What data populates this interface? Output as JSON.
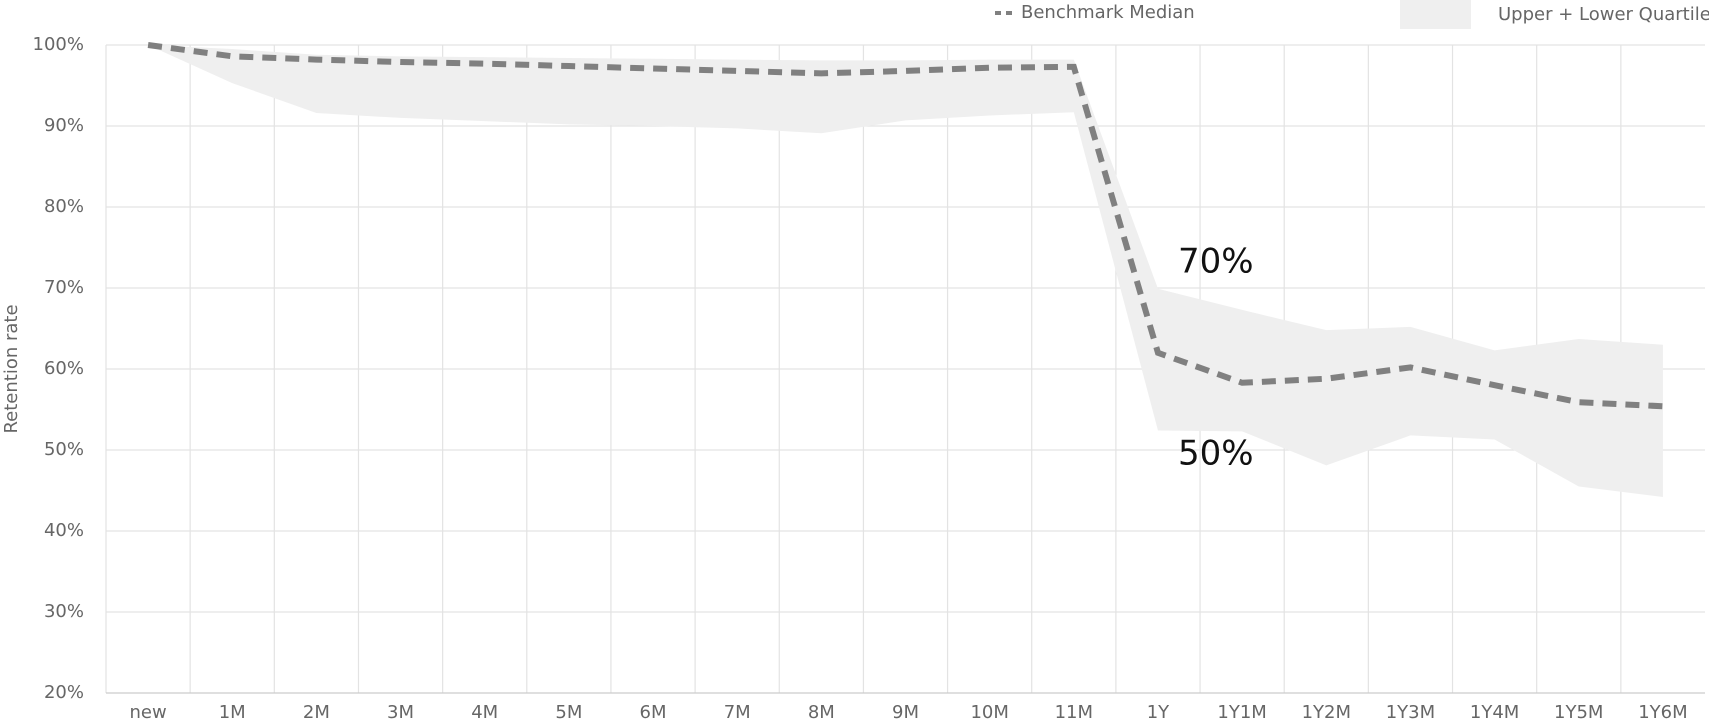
{
  "chart_data": {
    "type": "line",
    "y_label": "Retention rate",
    "categories": [
      "new",
      "1M",
      "2M",
      "3M",
      "4M",
      "5M",
      "6M",
      "7M",
      "8M",
      "9M",
      "10M",
      "11M",
      "1Y",
      "1Y1M",
      "1Y2M",
      "1Y3M",
      "1Y4M",
      "1Y5M",
      "1Y6M"
    ],
    "series": [
      {
        "name": "Benchmark Median",
        "color": "#808080",
        "values": [
          100,
          98.6,
          98.2,
          97.9,
          97.7,
          97.4,
          97.1,
          96.8,
          96.5,
          96.8,
          97.2,
          97.3,
          62,
          58.3,
          58.8,
          60.2,
          58,
          55.9,
          55.4
        ]
      }
    ],
    "band": {
      "name": "Upper + Lower Quartiles",
      "color": "#efefef",
      "upper": [
        100,
        99.5,
        98.8,
        98.6,
        98.5,
        98.4,
        98.3,
        98.2,
        98.1,
        98.1,
        98.2,
        98.2,
        69.9,
        67.3,
        64.8,
        65.2,
        62.3,
        63.7,
        63
      ],
      "lower": [
        100,
        95.3,
        91.6,
        91,
        90.6,
        90.2,
        90,
        89.7,
        89.1,
        90.7,
        91.3,
        91.7,
        52.4,
        52.3,
        48.1,
        51.8,
        51.3,
        45.5,
        44.2
      ]
    },
    "annotations": [
      "70%",
      "50%"
    ],
    "ylim": [
      20,
      100
    ],
    "yticks": [
      {
        "value": 20,
        "label": "20%"
      },
      {
        "value": 30,
        "label": "30%"
      },
      {
        "value": 40,
        "label": "40%"
      },
      {
        "value": 50,
        "label": "50%"
      },
      {
        "value": 60,
        "label": "60%"
      },
      {
        "value": 70,
        "label": "70%"
      },
      {
        "value": 80,
        "label": "80%"
      },
      {
        "value": 90,
        "label": "90%"
      },
      {
        "value": 100,
        "label": "100%"
      }
    ],
    "grid": true
  }
}
